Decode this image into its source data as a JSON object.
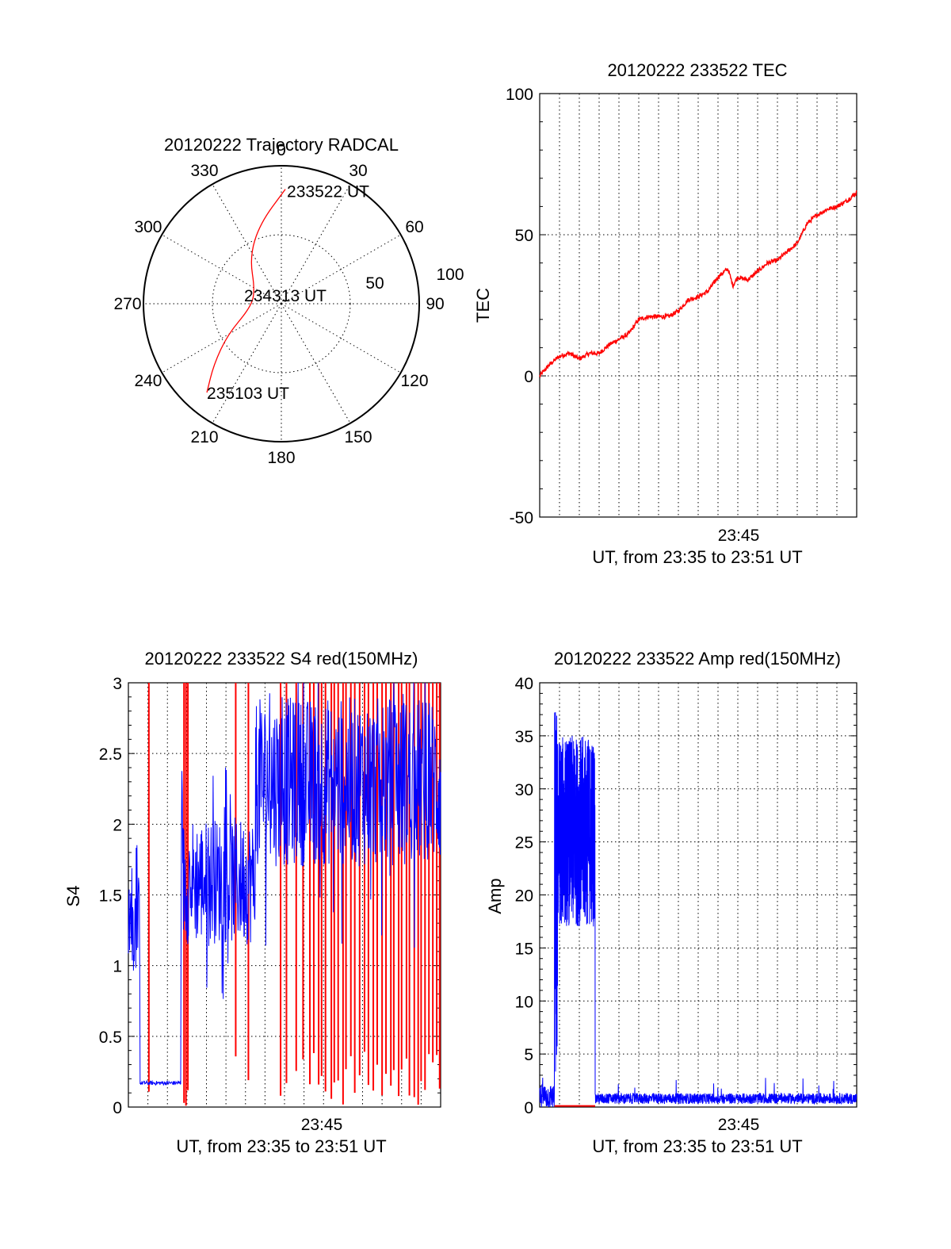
{
  "colors": {
    "red": "#ff0000",
    "blue": "#0000ff",
    "black": "#000000",
    "background": "#ffffff"
  },
  "chart_data": [
    {
      "id": "trajectory",
      "type": "polar",
      "title": "20120222 Trajectory RADCAL",
      "angle_labels": [
        "0",
        "30",
        "60",
        "90",
        "120",
        "150",
        "180",
        "210",
        "240",
        "270",
        "300",
        "330"
      ],
      "radial_labels": [
        "50",
        "100"
      ],
      "rlim": [
        0,
        100
      ],
      "grid": true,
      "trajectory": {
        "color": "red",
        "points": [
          {
            "az": 2,
            "r": 83
          },
          {
            "az": 345,
            "r": 60
          },
          {
            "az": 326,
            "r": 41
          },
          {
            "az": 295,
            "r": 21
          },
          {
            "az": 262,
            "r": 23
          },
          {
            "az": 240,
            "r": 45
          },
          {
            "az": 228,
            "r": 66
          },
          {
            "az": 220,
            "r": 84
          }
        ],
        "annotations": [
          {
            "text": "233522 UT",
            "point": "start"
          },
          {
            "text": "234313 UT",
            "point": "middle"
          },
          {
            "text": "235103 UT",
            "point": "end"
          }
        ]
      }
    },
    {
      "id": "tec",
      "type": "line",
      "title": "20120222 233522 TEC",
      "ylabel": "TEC",
      "xlabel": "UT, from 23:35 to 23:51 UT",
      "xtick_label": "23:45",
      "ylim": [
        -50,
        100
      ],
      "yticks": [
        "-50",
        "0",
        "50",
        "100"
      ],
      "grid": true,
      "series": [
        {
          "color": "red",
          "points": [
            [
              0,
              0
            ],
            [
              0.5,
              4
            ],
            [
              1,
              7
            ],
            [
              1.5,
              8
            ],
            [
              2,
              6
            ],
            [
              2.5,
              8
            ],
            [
              3,
              8
            ],
            [
              3.5,
              11
            ],
            [
              4,
              13
            ],
            [
              4.5,
              15
            ],
            [
              5,
              20
            ],
            [
              5.5,
              21
            ],
            [
              6,
              21
            ],
            [
              6.5,
              21
            ],
            [
              7,
              23
            ],
            [
              7.5,
              27
            ],
            [
              8,
              28
            ],
            [
              8.5,
              30
            ],
            [
              9,
              35
            ],
            [
              9.5,
              38
            ],
            [
              9.75,
              32
            ],
            [
              10,
              35
            ],
            [
              10.5,
              34
            ],
            [
              11,
              37
            ],
            [
              11.5,
              40
            ],
            [
              12,
              41
            ],
            [
              12.5,
              44
            ],
            [
              13,
              47
            ],
            [
              13.5,
              54
            ],
            [
              14,
              57
            ],
            [
              14.5,
              59
            ],
            [
              15,
              60
            ],
            [
              15.5,
              62
            ],
            [
              16,
              65
            ]
          ]
        }
      ]
    },
    {
      "id": "s4",
      "type": "line",
      "title": "20120222 233522 S4 red(150MHz)",
      "ylabel": "S4",
      "xlabel": "UT, from 23:35 to 23:51 UT",
      "xtick_label": "23:45",
      "ylim": [
        0,
        3
      ],
      "yticks": [
        "0",
        "0.5",
        "1",
        "1.5",
        "2",
        "2.5",
        "3"
      ],
      "grid": true,
      "series": [
        {
          "color": "red",
          "note": "vertical spikes reaching the top of the axis",
          "spike_times": [
            1.05,
            2.85,
            2.95,
            3.05,
            5.5,
            6.15,
            7.8,
            8.1,
            8.6,
            8.95,
            9.3,
            9.5,
            9.75,
            9.9,
            10.1,
            10.4,
            10.55,
            10.75,
            11.0,
            11.15,
            11.4,
            11.6,
            11.85,
            12.1,
            12.3,
            12.55,
            12.75,
            13.0,
            13.2,
            13.45,
            13.6,
            13.85,
            14.0,
            14.25,
            14.4,
            14.65,
            14.85,
            15.0,
            15.2,
            15.4,
            15.6,
            15.8,
            15.95
          ]
        },
        {
          "color": "blue",
          "segments": [
            {
              "t_start": 0.0,
              "t_end": 0.6,
              "level": 1.3,
              "spread": 0.35
            },
            {
              "t_start": 0.6,
              "t_end": 2.7,
              "level": 0.17,
              "spread": 0.015
            },
            {
              "t_start": 2.7,
              "t_end": 6.5,
              "level": 1.6,
              "spread": 0.45
            },
            {
              "t_start": 6.5,
              "t_end": 16.0,
              "level": 2.3,
              "spread": 0.6
            }
          ]
        }
      ]
    },
    {
      "id": "amp",
      "type": "line",
      "title": "20120222 233522 Amp red(150MHz)",
      "ylabel": "Amp",
      "xlabel": "UT, from 23:35 to 23:51 UT",
      "xtick_label": "23:45",
      "ylim": [
        0,
        40
      ],
      "yticks": [
        "0",
        "5",
        "10",
        "15",
        "20",
        "25",
        "30",
        "35",
        "40"
      ],
      "grid": true,
      "series": [
        {
          "color": "blue",
          "segments": [
            {
              "t_start": 0.0,
              "t_end": 0.75,
              "level": 1.0,
              "spread": 1.2
            },
            {
              "t_start": 0.75,
              "t_end": 0.9,
              "level": 20,
              "spread": 18
            },
            {
              "t_start": 0.9,
              "t_end": 2.8,
              "level": 26,
              "spread": 9
            },
            {
              "t_start": 2.8,
              "t_end": 16.0,
              "level": 0.8,
              "spread": 0.5
            }
          ]
        },
        {
          "color": "red",
          "segments": [
            {
              "t_start": 0.75,
              "t_end": 2.8,
              "level": 0.1
            }
          ]
        }
      ]
    }
  ]
}
